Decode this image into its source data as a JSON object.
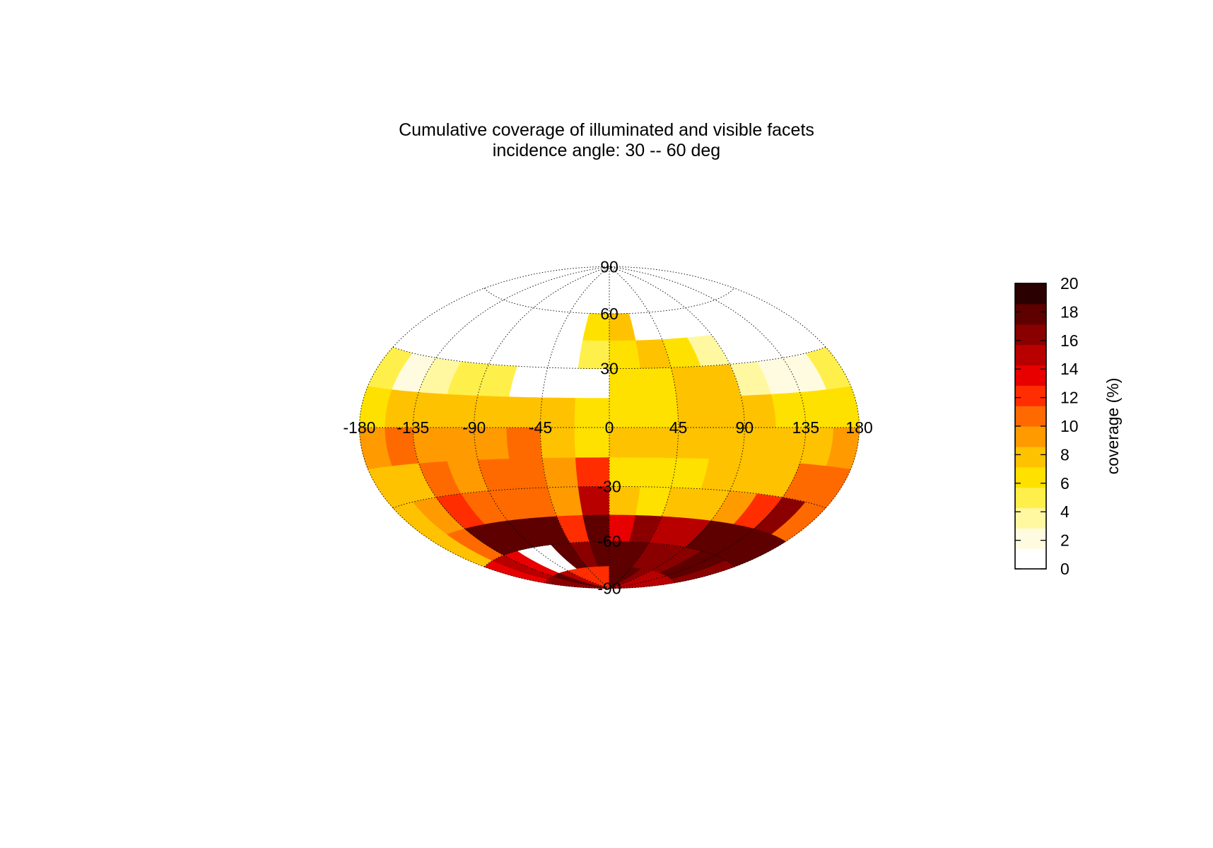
{
  "chart_data": {
    "type": "heatmap",
    "projection": "Hammer-Aitoff",
    "title": "Cumulative coverage of illuminated and visible facets",
    "subtitle": "incidence angle: 30 -- 60 deg",
    "lon_ticks": [
      "-180",
      "-135",
      "-90",
      "-45",
      "0",
      "45",
      "90",
      "135",
      "180"
    ],
    "lat_ticks": [
      "90",
      "60",
      "30",
      "-30",
      "-60",
      "-90"
    ],
    "colorbar": {
      "label": "coverage (%)",
      "min": 0,
      "max": 20,
      "ticks": [
        "0",
        "2",
        "4",
        "6",
        "8",
        "10",
        "12",
        "14",
        "16",
        "18",
        "20"
      ],
      "colormap": "hot (reversed)"
    },
    "grid": true,
    "lon_bins": [
      -180,
      -157.5,
      -135,
      -112.5,
      -90,
      -67.5,
      -45,
      -22.5,
      0,
      22.5,
      45,
      67.5,
      90,
      112.5,
      135,
      157.5,
      180
    ],
    "lat_bins": [
      -90,
      -75,
      -60,
      -45,
      -30,
      -15,
      0,
      15,
      30,
      45,
      60
    ],
    "grid_values": [
      [
        17,
        17,
        18,
        15,
        13,
        12,
        12,
        13,
        18,
        18,
        18,
        17,
        16,
        16,
        16,
        16
      ],
      [
        14,
        15,
        14,
        0,
        0,
        18,
        17,
        18,
        18,
        18,
        17,
        17,
        17,
        18,
        18,
        17
      ],
      [
        8,
        10,
        18,
        18,
        18,
        18,
        12,
        18,
        14,
        17,
        15,
        16,
        18,
        18,
        18,
        18
      ],
      [
        7,
        9,
        12,
        11,
        10,
        11,
        9,
        15,
        7,
        6,
        7,
        8,
        9,
        13,
        17,
        10
      ],
      [
        7,
        8,
        11,
        9,
        10,
        10,
        9,
        12,
        6,
        6,
        6,
        7,
        7,
        8,
        10,
        11
      ],
      [
        9,
        10,
        9,
        9,
        9,
        10,
        8,
        6,
        8,
        7,
        7,
        8,
        7,
        7,
        8,
        9
      ],
      [
        6,
        7,
        7,
        7,
        8,
        7,
        7,
        6,
        6,
        6,
        7,
        7,
        7,
        6,
        6,
        6
      ],
      [
        4,
        2,
        3,
        5,
        4,
        0,
        0,
        0,
        6,
        6,
        8,
        8,
        3,
        2,
        2,
        4
      ],
      [
        0,
        0,
        0,
        0,
        0,
        0,
        0,
        5,
        6,
        7,
        6,
        3,
        0,
        0,
        0,
        0
      ],
      [
        0,
        0,
        0,
        0,
        0,
        0,
        0,
        6,
        7,
        0,
        0,
        0,
        0,
        0,
        0,
        0
      ]
    ],
    "palette": [
      "#ffffff",
      "#fffbe0",
      "#fff8a0",
      "#ffef4a",
      "#ffe100",
      "#ffc200",
      "#ff9a00",
      "#ff6a00",
      "#ff2d00",
      "#e80000",
      "#b80000",
      "#8a0000",
      "#5e0000",
      "#2a0000"
    ]
  }
}
